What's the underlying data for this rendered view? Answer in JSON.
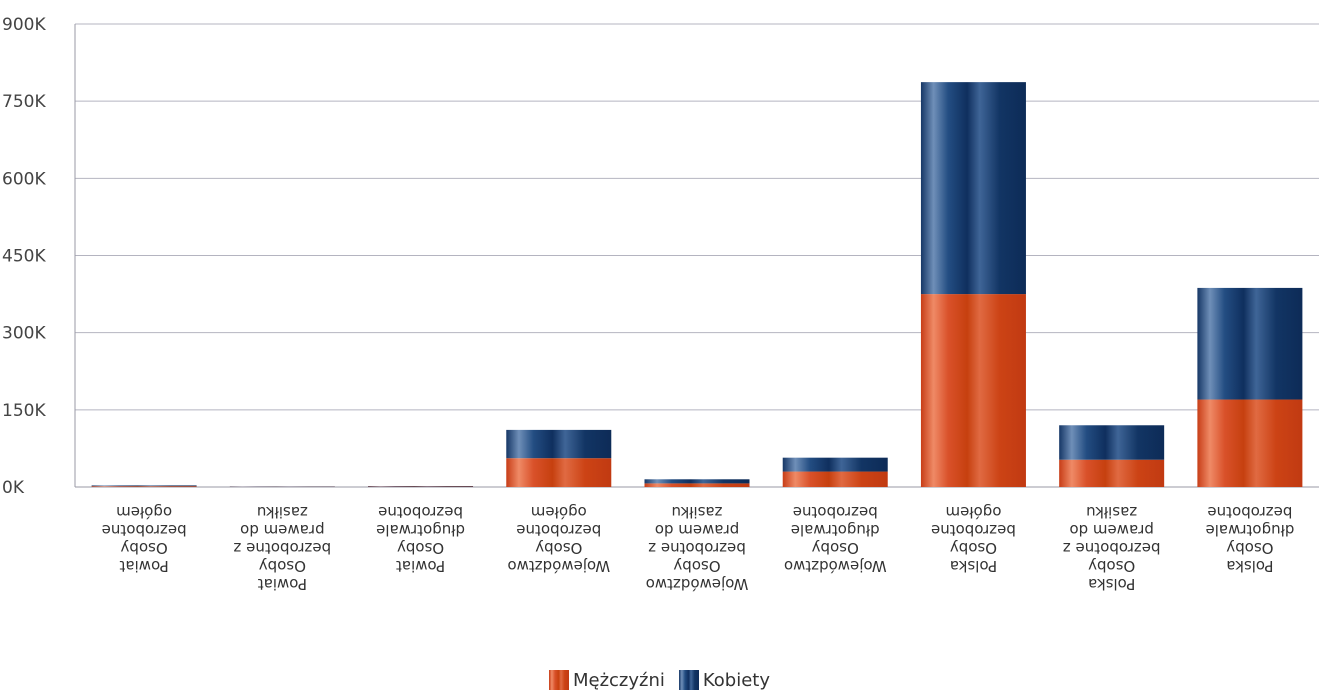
{
  "chart_data": {
    "type": "bar",
    "stacked": true,
    "categories": [
      [
        "Powiat",
        "Osoby",
        "bezrobotne",
        "ogółem"
      ],
      [
        "Powiat",
        "Osoby",
        "bezrobotne z",
        "prawem do",
        "zasiłku"
      ],
      [
        "Powiat",
        "Osoby",
        "długotrwale",
        "bezrobotne"
      ],
      [
        "Województwo",
        "Osoby",
        "bezrobotne",
        "ogółem"
      ],
      [
        "Województwo",
        "Osoby",
        "bezrobotne z",
        "prawem do",
        "zasiłku"
      ],
      [
        "Województwo",
        "Osoby",
        "długotrwale",
        "bezrobotne"
      ],
      [
        "Polska",
        "Osoby",
        "bezrobotne",
        "ogółem"
      ],
      [
        "Polska",
        "Osoby",
        "bezrobotne z",
        "prawem do",
        "zasiłku"
      ],
      [
        "Polska",
        "Osoby",
        "długotrwale",
        "bezrobotne"
      ]
    ],
    "series": [
      {
        "name": "Mężczyźni",
        "color": "#d4471f",
        "values": [
          1500,
          500,
          800,
          56000,
          7000,
          30000,
          375000,
          53000,
          170000
        ]
      },
      {
        "name": "Kobiety",
        "color": "#1a3f72",
        "values": [
          1600,
          600,
          1000,
          55000,
          8000,
          27000,
          412000,
          67000,
          217000
        ]
      }
    ],
    "ylim": [
      0,
      900000
    ],
    "yticks": [
      0,
      150000,
      300000,
      450000,
      600000,
      750000,
      900000
    ],
    "ytick_labels": [
      "0K",
      "150K",
      "300K",
      "450K",
      "600K",
      "750K",
      "900K"
    ],
    "xtick_rotation": 180,
    "grid": true,
    "legend": "bottom-center"
  }
}
